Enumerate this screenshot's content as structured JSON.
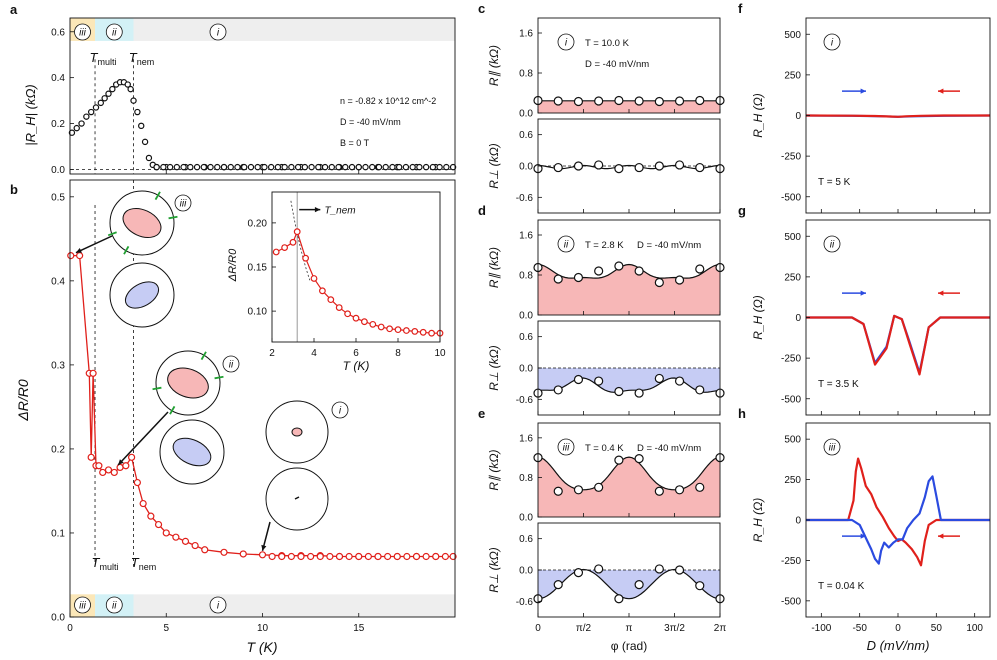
{
  "panel_letters": {
    "a": "a",
    "b": "b",
    "c": "c",
    "d": "d",
    "e": "e",
    "f": "f",
    "g": "g",
    "h": "h"
  },
  "region_labels": {
    "iii": "iii",
    "ii": "ii",
    "i": "i"
  },
  "markers": {
    "multi_main": "T",
    "multi_sub": "multi",
    "nem_main": "T",
    "nem_sub": "nem"
  },
  "colors": {
    "red": "#e0201b",
    "blue": "#2b4be0",
    "pink_fill": "#f7b7b7",
    "blue_fill": "#c6ccf4",
    "orange_band": "#fbe7b8",
    "cyan_band": "#d3f1f6",
    "grey_band": "#eeeeee",
    "black": "#111111"
  },
  "panel_a": {
    "ylabel": "|R_H| (kΩ)",
    "yticks": [
      "0.0",
      "0.2",
      "0.4",
      "0.6"
    ],
    "annotations": [
      "n = -0.82 x 10^12 cm^-2",
      "D = -40 mV/nm",
      "B = 0 T"
    ]
  },
  "panel_b": {
    "ylabel": "ΔR/R0",
    "xlabel": "T (K)",
    "yticks": [
      "0.0",
      "0.1",
      "0.2",
      "0.3",
      "0.4",
      "0.5"
    ],
    "xticks": [
      "0",
      "5",
      "10",
      "15"
    ],
    "inset": {
      "ylabel": "ΔR/R0",
      "xlabel": "T (K)",
      "yticks": [
        "0.10",
        "0.15",
        "0.20"
      ],
      "xticks": [
        "2",
        "4",
        "6",
        "8",
        "10"
      ],
      "arrow_label": "T_nem"
    }
  },
  "panels_cde": {
    "c": {
      "region": "i",
      "temp": "T = 10.0 K",
      "field": "D = -40 mV/nm"
    },
    "d": {
      "region": "ii",
      "temp": "T = 2.8 K",
      "field": "D = -40 mV/nm"
    },
    "e": {
      "region": "iii",
      "temp": "T = 0.4 K",
      "field": "D = -40 mV/nm"
    },
    "ylabel_par": "R∥ (kΩ)",
    "ylabel_perp": "R⊥ (kΩ)",
    "yticks_par": [
      "0.0",
      "0.8",
      "1.6"
    ],
    "yticks_perp": [
      "-0.6",
      "0.0",
      "0.6"
    ],
    "xticks": [
      "0",
      "π/2",
      "π",
      "3π/2",
      "2π"
    ],
    "xlabel": "φ (rad)"
  },
  "panels_fgh": {
    "f": {
      "region": "i",
      "temp": "T = 5 K"
    },
    "g": {
      "region": "ii",
      "temp": "T = 3.5 K"
    },
    "h": {
      "region": "iii",
      "temp": "T = 0.04 K"
    },
    "ylabel": "R_H (Ω)",
    "yticks": [
      "500",
      "250",
      "0",
      "-250",
      "-500"
    ],
    "xticks": [
      "-100",
      "-50",
      "0",
      "50",
      "100"
    ],
    "xlabel": "D (mV/nm)"
  },
  "chart_data": [
    {
      "type": "scatter",
      "id": "a",
      "title": "",
      "xlabel": "T (K)",
      "ylabel": "|R_H| (kΩ)",
      "xlim": [
        0,
        20
      ],
      "ylim": [
        -0.02,
        0.66
      ],
      "series": [
        {
          "name": "|R_H|",
          "x": [
            0.1,
            0.35,
            0.6,
            0.85,
            1.1,
            1.35,
            1.6,
            1.8,
            2.0,
            2.2,
            2.4,
            2.6,
            2.8,
            3.0,
            3.15,
            3.3,
            3.5,
            3.7,
            3.9,
            4.1,
            4.3,
            4.5,
            5,
            6,
            7,
            8,
            9,
            10,
            11,
            12,
            13,
            14,
            15,
            16,
            17,
            18,
            19,
            19.9
          ],
          "y": [
            0.16,
            0.18,
            0.2,
            0.23,
            0.25,
            0.27,
            0.29,
            0.31,
            0.33,
            0.35,
            0.37,
            0.38,
            0.38,
            0.37,
            0.35,
            0.3,
            0.25,
            0.19,
            0.12,
            0.05,
            0.02,
            0.01,
            0.01,
            0.01,
            0.01,
            0.01,
            0.01,
            0.01,
            0.01,
            0.01,
            0.01,
            0.01,
            0.01,
            0.01,
            0.01,
            0.01,
            0.01,
            0.01
          ]
        }
      ]
    },
    {
      "type": "line",
      "id": "b",
      "title": "",
      "xlabel": "T (K)",
      "ylabel": "ΔR/R0",
      "xlim": [
        0,
        20
      ],
      "ylim": [
        0,
        0.52
      ],
      "series": [
        {
          "name": "ΔR/R0",
          "x": [
            0.04,
            0.5,
            1.0,
            1.1,
            1.2,
            1.35,
            1.5,
            1.7,
            2.0,
            2.3,
            2.6,
            2.9,
            3.2,
            3.5,
            3.8,
            4.2,
            4.6,
            5.0,
            5.5,
            6,
            6.5,
            7,
            8,
            9,
            10,
            11,
            12,
            13,
            14,
            15,
            16,
            17,
            18,
            19,
            19.9
          ],
          "y": [
            0.43,
            0.43,
            0.29,
            0.19,
            0.29,
            0.18,
            0.18,
            0.172,
            0.175,
            0.172,
            0.178,
            0.18,
            0.19,
            0.16,
            0.135,
            0.12,
            0.11,
            0.1,
            0.095,
            0.09,
            0.085,
            0.08,
            0.077,
            0.075,
            0.074,
            0.073,
            0.073,
            0.073,
            0.072,
            0.072,
            0.072,
            0.072,
            0.072,
            0.072,
            0.072
          ]
        }
      ]
    },
    {
      "type": "scatter",
      "id": "b_inset",
      "title": "",
      "xlabel": "T (K)",
      "ylabel": "ΔR/R0",
      "xlim": [
        2,
        10
      ],
      "ylim": [
        0.065,
        0.235
      ],
      "series": [
        {
          "name": "ΔR/R0",
          "x": [
            2.2,
            2.6,
            3.0,
            3.2,
            3.6,
            4.0,
            4.4,
            4.8,
            5.2,
            5.6,
            6.0,
            6.4,
            6.8,
            7.2,
            7.6,
            8.0,
            8.4,
            8.8,
            9.2,
            9.6,
            10.0
          ],
          "y": [
            0.167,
            0.172,
            0.178,
            0.19,
            0.16,
            0.137,
            0.123,
            0.113,
            0.104,
            0.097,
            0.092,
            0.088,
            0.085,
            0.082,
            0.08,
            0.079,
            0.078,
            0.077,
            0.076,
            0.075,
            0.075
          ]
        }
      ]
    },
    {
      "type": "scatter",
      "id": "c_par",
      "xlabel": "φ (rad)",
      "ylabel": "R∥ (kΩ)",
      "xlim": [
        0,
        6.2832
      ],
      "ylim": [
        0,
        1.9
      ],
      "series": [
        {
          "name": "R∥",
          "x": [
            0,
            0.6981,
            1.3963,
            2.0944,
            2.7925,
            3.4907,
            4.1888,
            4.8869,
            5.5851,
            6.2832
          ],
          "y": [
            0.25,
            0.24,
            0.23,
            0.24,
            0.25,
            0.24,
            0.23,
            0.24,
            0.25,
            0.25
          ]
        }
      ]
    },
    {
      "type": "scatter",
      "id": "c_perp",
      "xlabel": "φ (rad)",
      "ylabel": "R⊥ (kΩ)",
      "xlim": [
        0,
        6.2832
      ],
      "ylim": [
        -0.9,
        0.9
      ],
      "series": [
        {
          "name": "R⊥",
          "x": [
            0,
            0.6981,
            1.3963,
            2.0944,
            2.7925,
            3.4907,
            4.1888,
            4.8869,
            5.5851,
            6.2832
          ],
          "y": [
            -0.05,
            -0.03,
            0.0,
            0.02,
            -0.05,
            -0.03,
            0.0,
            0.02,
            -0.03,
            -0.05
          ]
        }
      ]
    },
    {
      "type": "scatter",
      "id": "d_par",
      "xlabel": "φ (rad)",
      "ylabel": "R∥ (kΩ)",
      "xlim": [
        0,
        6.2832
      ],
      "ylim": [
        0,
        1.9
      ],
      "series": [
        {
          "name": "R∥",
          "x": [
            0,
            0.6981,
            1.3963,
            2.0944,
            2.7925,
            3.4907,
            4.1888,
            4.8869,
            5.5851,
            6.2832
          ],
          "y": [
            0.95,
            0.72,
            0.75,
            0.88,
            0.98,
            0.88,
            0.65,
            0.7,
            0.92,
            0.95
          ]
        }
      ]
    },
    {
      "type": "scatter",
      "id": "d_perp",
      "xlabel": "φ (rad)",
      "ylabel": "R⊥ (kΩ)",
      "xlim": [
        0,
        6.2832
      ],
      "ylim": [
        -0.9,
        0.9
      ],
      "series": [
        {
          "name": "R⊥",
          "x": [
            0,
            0.6981,
            1.3963,
            2.0944,
            2.7925,
            3.4907,
            4.1888,
            4.8869,
            5.5851,
            6.2832
          ],
          "y": [
            -0.48,
            -0.42,
            -0.22,
            -0.25,
            -0.45,
            -0.48,
            -0.2,
            -0.25,
            -0.42,
            -0.48
          ]
        }
      ]
    },
    {
      "type": "scatter",
      "id": "e_par",
      "xlabel": "φ (rad)",
      "ylabel": "R∥ (kΩ)",
      "xlim": [
        0,
        6.2832
      ],
      "ylim": [
        0,
        1.9
      ],
      "series": [
        {
          "name": "R∥",
          "x": [
            0,
            0.6981,
            1.3963,
            2.0944,
            2.7925,
            3.4907,
            4.1888,
            4.8869,
            5.5851,
            6.2832
          ],
          "y": [
            1.2,
            0.52,
            0.55,
            0.6,
            1.15,
            1.18,
            0.52,
            0.55,
            0.6,
            1.2
          ]
        }
      ]
    },
    {
      "type": "scatter",
      "id": "e_perp",
      "xlabel": "φ (rad)",
      "ylabel": "R⊥ (kΩ)",
      "xlim": [
        0,
        6.2832
      ],
      "ylim": [
        -0.9,
        0.9
      ],
      "series": [
        {
          "name": "R⊥",
          "x": [
            0,
            0.6981,
            1.3963,
            2.0944,
            2.7925,
            3.4907,
            4.1888,
            4.8869,
            5.5851,
            6.2832
          ],
          "y": [
            -0.55,
            -0.28,
            -0.05,
            0.02,
            -0.55,
            -0.28,
            0.02,
            0.0,
            -0.3,
            -0.55
          ]
        }
      ]
    },
    {
      "type": "line",
      "id": "f",
      "xlabel": "D (mV/nm)",
      "ylabel": "R_H (Ω)",
      "xlim": [
        -120,
        120
      ],
      "ylim": [
        -600,
        600
      ],
      "series": [
        {
          "name": "sweep up",
          "color": "blue",
          "x": [
            -120,
            -60,
            -20,
            0,
            20,
            60,
            120
          ],
          "y": [
            0,
            -2,
            -5,
            -8,
            -5,
            -2,
            0
          ]
        },
        {
          "name": "sweep down",
          "color": "red",
          "x": [
            -120,
            -60,
            -30,
            -10,
            0,
            10,
            30,
            60,
            120
          ],
          "y": [
            0,
            -1,
            -3,
            -6,
            -8,
            -5,
            -2,
            0,
            0
          ]
        }
      ]
    },
    {
      "type": "line",
      "id": "g",
      "xlabel": "D (mV/nm)",
      "ylabel": "R_H (Ω)",
      "xlim": [
        -120,
        120
      ],
      "ylim": [
        -600,
        600
      ],
      "series": [
        {
          "name": "sweep up",
          "color": "blue",
          "x": [
            -120,
            -60,
            -45,
            -30,
            -15,
            -5,
            5,
            15,
            28,
            40,
            55,
            120
          ],
          "y": [
            0,
            0,
            -40,
            -280,
            -180,
            10,
            -10,
            -150,
            -340,
            -60,
            0,
            0
          ]
        },
        {
          "name": "sweep down",
          "color": "red",
          "x": [
            -120,
            -60,
            -45,
            -30,
            -15,
            -5,
            5,
            15,
            28,
            40,
            55,
            120
          ],
          "y": [
            0,
            0,
            -40,
            -290,
            -190,
            10,
            -10,
            -160,
            -350,
            -60,
            0,
            0
          ]
        }
      ]
    },
    {
      "type": "line",
      "id": "h",
      "xlabel": "D (mV/nm)",
      "ylabel": "R_H (Ω)",
      "xlim": [
        -120,
        120
      ],
      "ylim": [
        -600,
        600
      ],
      "series": [
        {
          "name": "sweep down",
          "color": "red",
          "x": [
            -120,
            -65,
            -58,
            -55,
            -52,
            -48,
            -42,
            -35,
            -28,
            -20,
            -12,
            -5,
            0,
            5,
            10,
            18,
            25,
            30,
            35,
            40,
            50,
            60,
            120
          ],
          "y": [
            0,
            0,
            120,
            300,
            380,
            320,
            210,
            160,
            80,
            20,
            -50,
            -100,
            -130,
            -120,
            -140,
            -180,
            -230,
            -280,
            -130,
            -30,
            0,
            0,
            0
          ]
        },
        {
          "name": "sweep up",
          "color": "blue",
          "x": [
            -120,
            -60,
            -50,
            -40,
            -35,
            -30,
            -25,
            -22,
            -18,
            -12,
            -6,
            0,
            6,
            12,
            20,
            28,
            35,
            40,
            45,
            50,
            56,
            60,
            120
          ],
          "y": [
            0,
            0,
            -30,
            -130,
            -180,
            -240,
            -270,
            -190,
            -140,
            -170,
            -140,
            -120,
            -120,
            -50,
            0,
            40,
            140,
            240,
            270,
            150,
            0,
            0,
            0
          ]
        }
      ]
    }
  ]
}
